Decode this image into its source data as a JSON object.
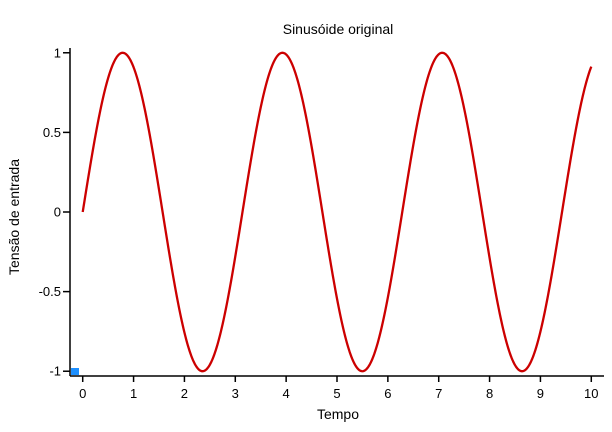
{
  "chart_data": {
    "type": "line",
    "title": "Sinusóide original",
    "xlabel": "Tempo",
    "ylabel": "Tensão de entrada",
    "xlim": [
      -0.25,
      10.25
    ],
    "ylim": [
      -1.03,
      1.03
    ],
    "x_ticks": [
      0,
      1,
      2,
      3,
      4,
      5,
      6,
      7,
      8,
      9,
      10
    ],
    "x_tick_labels": [
      "0",
      "1",
      "2",
      "3",
      "4",
      "5",
      "6",
      "7",
      "8",
      "9",
      "10"
    ],
    "y_ticks": [
      1,
      0.5,
      0,
      -0.5,
      -1
    ],
    "y_tick_labels": [
      "1",
      "0.5",
      "0",
      "-0.5",
      "-1"
    ],
    "grid": false,
    "series": [
      {
        "color": "#cc0000",
        "function": "sin",
        "amplitude": 1,
        "angular_frequency": 2,
        "x_start": 0,
        "x_end": 10,
        "x": [
          0,
          0.785,
          2.356,
          3.927,
          5.498,
          7.069,
          8.639,
          10
        ],
        "y": [
          0,
          1,
          -1,
          1,
          -1,
          1,
          -1,
          0.913
        ]
      }
    ],
    "corner_marker_color": "#1e90ff"
  }
}
